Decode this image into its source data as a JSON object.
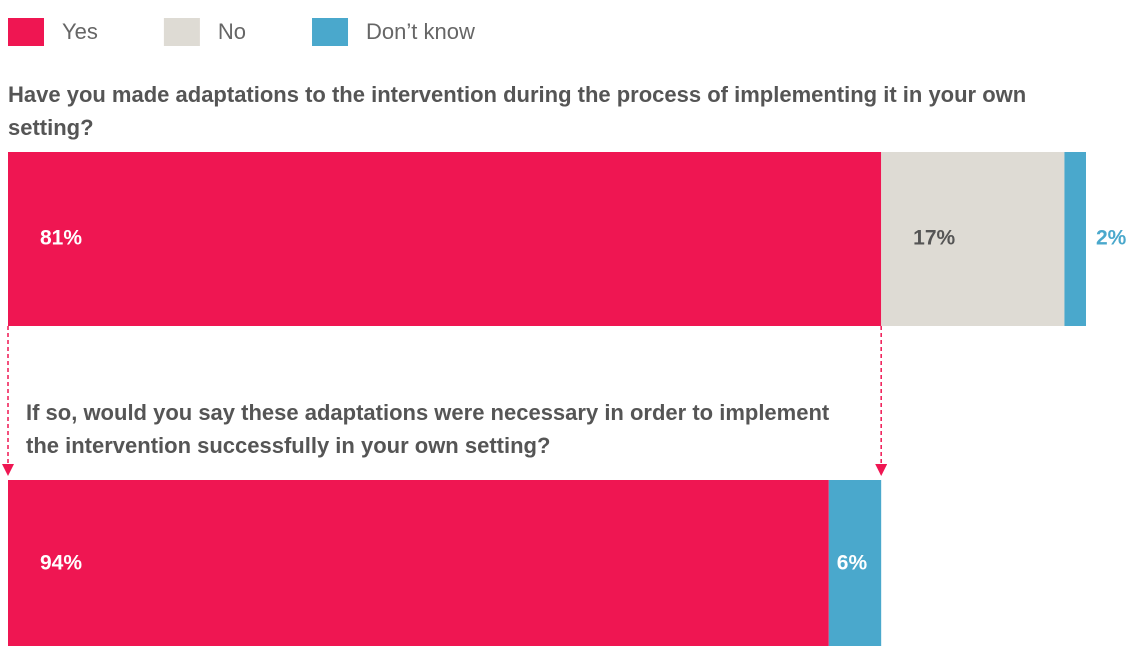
{
  "legend": [
    {
      "name": "Yes",
      "color": "#ef1652"
    },
    {
      "name": "No",
      "color": "#dedbd4"
    },
    {
      "name": "Don’t know",
      "color": "#4aa8cc"
    }
  ],
  "chart_data": [
    {
      "type": "bar",
      "orientation": "horizontal",
      "stacked": true,
      "title": "Have you made adaptations to the intervention during the process of implementing it in your own setting?",
      "xlim": [
        0,
        100
      ],
      "series": [
        {
          "color": "#ef1652",
          "values": [
            81
          ],
          "value_labels": [
            "81%"
          ]
        },
        {
          "color": "#dedbd4",
          "values": [
            17
          ],
          "value_labels": [
            "17%"
          ]
        },
        {
          "color": "#4aa8cc",
          "values": [
            2
          ],
          "value_labels": [
            "2%"
          ]
        }
      ]
    },
    {
      "type": "bar",
      "orientation": "horizontal",
      "stacked": true,
      "title": "If so, would you say these adaptations were necessary in order to implement the intervention successfully in your own setting?",
      "xlim": [
        0,
        100
      ],
      "series": [
        {
          "color": "#ef1652",
          "values": [
            94
          ],
          "value_labels": [
            "94%"
          ]
        },
        {
          "color": "#4aa8cc",
          "values": [
            6
          ],
          "value_labels": [
            "6%"
          ]
        }
      ]
    }
  ]
}
